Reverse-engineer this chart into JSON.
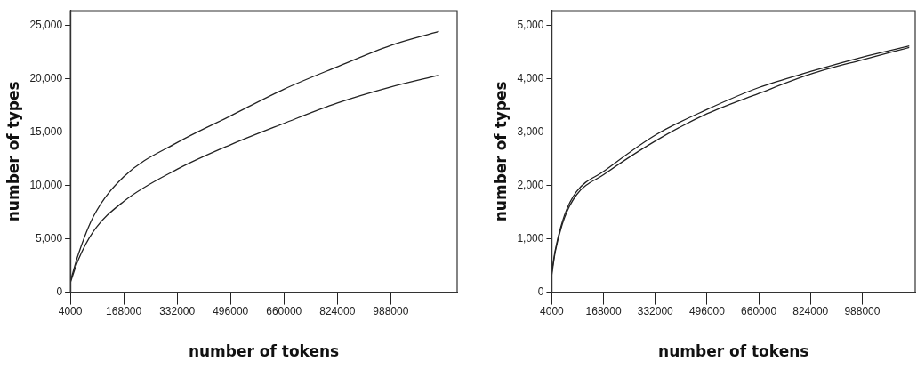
{
  "chart_data": [
    {
      "type": "line",
      "xlabel": "number of tokens",
      "ylabel": "number of types",
      "xlim": [
        4000,
        1192000
      ],
      "ylim": [
        0,
        26350
      ],
      "xticks": [
        4000,
        168000,
        332000,
        496000,
        660000,
        824000,
        988000
      ],
      "yticks": [
        {
          "value": 0,
          "label": "0"
        },
        {
          "value": 5000,
          "label": "5,000"
        },
        {
          "value": 10000,
          "label": "10,000"
        },
        {
          "value": 15000,
          "label": "15,000"
        },
        {
          "value": 20000,
          "label": "20,000"
        },
        {
          "value": 25000,
          "label": "25,000"
        }
      ],
      "grid": false,
      "legend": false,
      "marker": "none",
      "line_style": "solid",
      "x": [
        4000,
        28000,
        75000,
        168000,
        332000,
        496000,
        660000,
        824000,
        988000,
        1136000
      ],
      "series": [
        {
          "color": "#222222",
          "values": [
            1000,
            3500,
            7100,
            10800,
            14000,
            16500,
            19000,
            21100,
            23100,
            24400
          ]
        },
        {
          "color": "#222222",
          "values": [
            900,
            3000,
            5700,
            8500,
            11500,
            13800,
            15800,
            17700,
            19200,
            20300
          ]
        }
      ]
    },
    {
      "type": "line",
      "xlabel": "number of tokens",
      "ylabel": "number of types",
      "xlim": [
        4000,
        1156000
      ],
      "ylim": [
        0,
        5270
      ],
      "xticks": [
        4000,
        168000,
        332000,
        496000,
        660000,
        824000,
        988000
      ],
      "yticks": [
        {
          "value": 0,
          "label": "0"
        },
        {
          "value": 1000,
          "label": "1,000"
        },
        {
          "value": 2000,
          "label": "2,000"
        },
        {
          "value": 3000,
          "label": "3,000"
        },
        {
          "value": 4000,
          "label": "4,000"
        },
        {
          "value": 5000,
          "label": "5,000"
        }
      ],
      "grid": false,
      "legend": false,
      "marker": "none",
      "line_style": "solid",
      "x": [
        4000,
        15000,
        44000,
        82000,
        168000,
        332000,
        496000,
        660000,
        824000,
        988000,
        1137000
      ],
      "series": [
        {
          "color": "#222222",
          "values": [
            380,
            790,
            1440,
            1880,
            2260,
            2940,
            3420,
            3830,
            4130,
            4400,
            4610
          ]
        },
        {
          "color": "#222222",
          "values": [
            330,
            760,
            1390,
            1820,
            2200,
            2830,
            3340,
            3720,
            4080,
            4350,
            4580
          ]
        }
      ]
    }
  ]
}
